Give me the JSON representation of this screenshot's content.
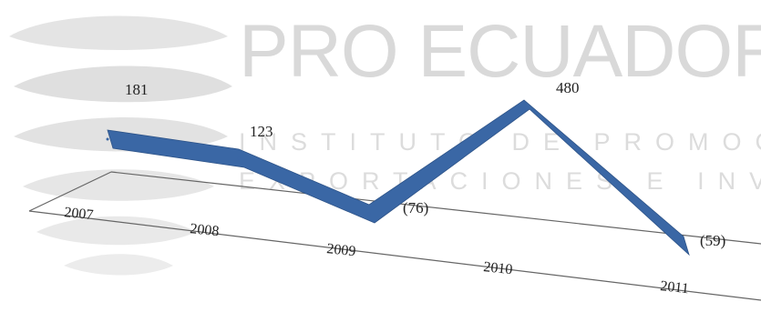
{
  "watermark": {
    "title": "PRO ECUADOR",
    "subtitle_line1": "INSTITUTO DE PROMOCIÓN DE",
    "subtitle_line2": "EXPORTACIONES E INVERSIONES"
  },
  "colors": {
    "series": "#3a67a5",
    "axis": "#555555",
    "watermark": "#d9d9d9"
  },
  "chart_data": {
    "type": "line",
    "categories": [
      "2007",
      "2008",
      "2009",
      "2010",
      "2011"
    ],
    "series": [
      {
        "values": [
          181,
          123,
          -76,
          480,
          -59
        ]
      }
    ],
    "data_labels": [
      "181",
      "123",
      "(76)",
      "480",
      "(59)"
    ],
    "title": "",
    "xlabel": "",
    "ylabel": "",
    "grid": false,
    "legend": "none",
    "style": "3d-ribbon"
  }
}
